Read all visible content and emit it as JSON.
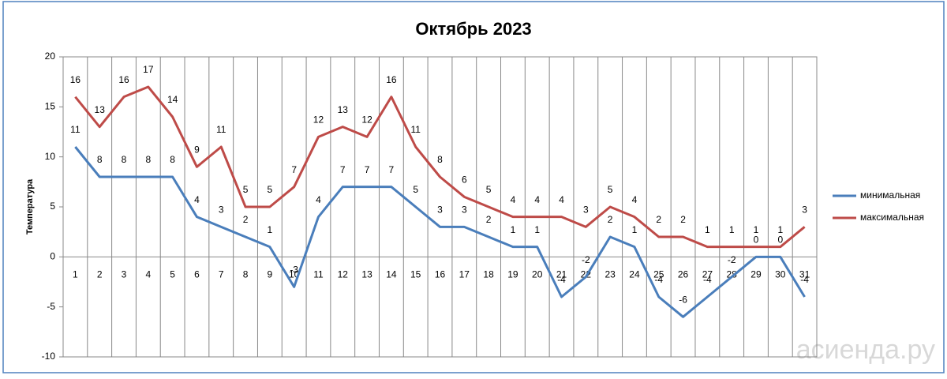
{
  "chart_data": {
    "type": "line",
    "title": "Октябрь 2023",
    "y_label": "Температура",
    "categories": [
      "1",
      "2",
      "3",
      "4",
      "5",
      "6",
      "7",
      "8",
      "9",
      "10",
      "11",
      "12",
      "13",
      "14",
      "15",
      "16",
      "17",
      "18",
      "19",
      "20",
      "21",
      "22",
      "23",
      "24",
      "25",
      "26",
      "27",
      "28",
      "29",
      "30",
      "31"
    ],
    "series": [
      {
        "name": "минимальная",
        "color": "#4a7ebb",
        "values": [
          11,
          8,
          8,
          8,
          8,
          4,
          3,
          2,
          1,
          -3,
          4,
          7,
          7,
          7,
          5,
          3,
          3,
          2,
          1,
          1,
          -4,
          -2,
          2,
          1,
          -4,
          -6,
          -4,
          -2,
          0,
          0,
          -4
        ]
      },
      {
        "name": "максимальная",
        "color": "#be4b48",
        "values": [
          16,
          13,
          16,
          17,
          14,
          9,
          11,
          5,
          5,
          7,
          12,
          13,
          12,
          16,
          11,
          8,
          6,
          5,
          4,
          4,
          4,
          3,
          5,
          4,
          2,
          2,
          1,
          1,
          1,
          1,
          3
        ]
      }
    ],
    "ylim": [
      -10,
      20
    ],
    "yticks": [
      -10,
      -5,
      0,
      5,
      10,
      15,
      20
    ],
    "grid": true,
    "legend": "right",
    "watermark": "асиенда.ру"
  }
}
